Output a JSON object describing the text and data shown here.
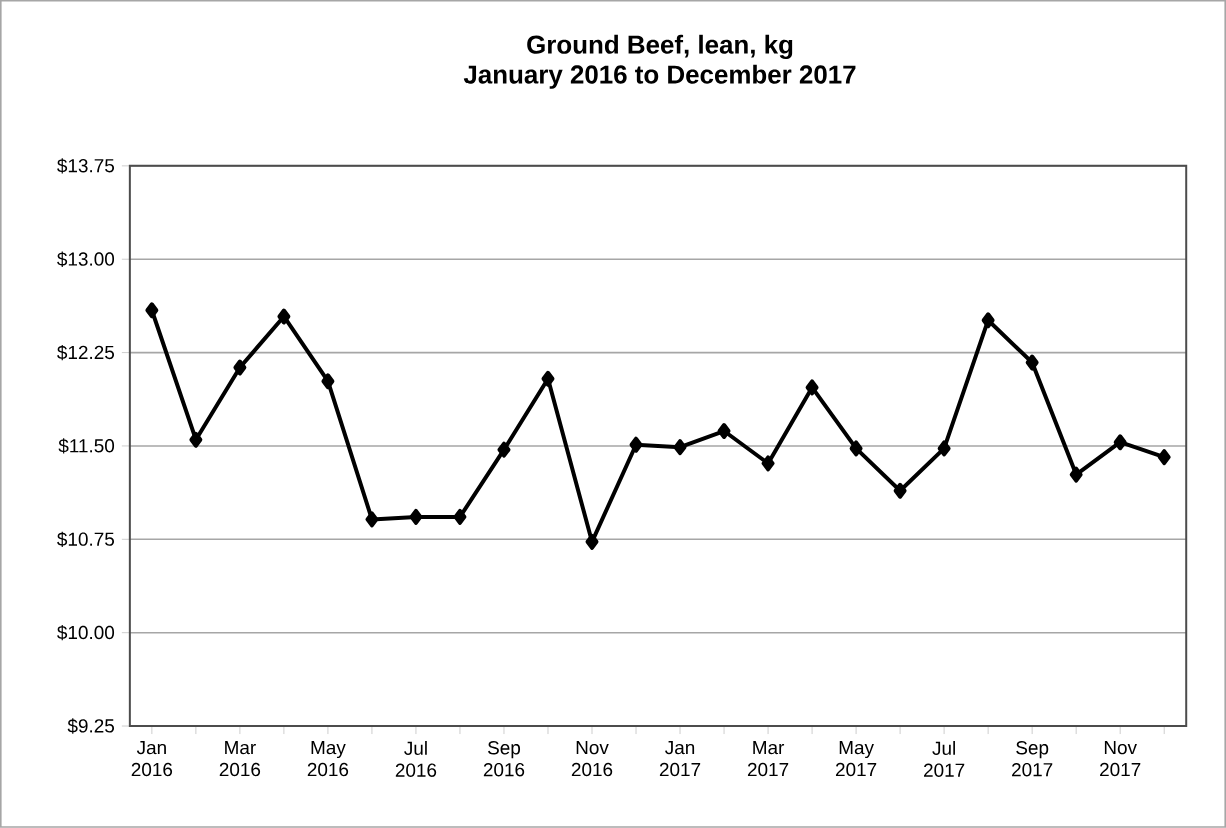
{
  "chart_data": {
    "type": "line",
    "title": "Ground Beef, lean, kg",
    "subtitle": "January 2016 to December 2017",
    "categories": [
      "Jan 2016",
      null,
      "Mar 2016",
      null,
      "May 2016",
      null,
      "Jul 2016",
      null,
      "Sep 2016",
      null,
      "Nov 2016",
      null,
      "Jan 2017",
      null,
      "Mar 2017",
      null,
      "May 2017",
      null,
      "Jul 2017",
      null,
      "Sep 2017",
      null,
      "Nov 2017",
      null
    ],
    "series": [
      {
        "color": "#000000",
        "values": [
          12.59,
          11.55,
          12.13,
          12.54,
          12.02,
          10.91,
          10.93,
          10.93,
          11.47,
          12.04,
          10.73,
          11.51,
          11.49,
          11.62,
          11.36,
          11.97,
          11.48,
          11.14,
          11.48,
          12.51,
          12.17,
          11.27,
          11.53,
          11.41
        ]
      }
    ],
    "ylim": [
      9.25,
      13.75
    ],
    "yticks": [
      {
        "value": 9.25,
        "label": "$9.25"
      },
      {
        "value": 10.0,
        "label": "$10.00"
      },
      {
        "value": 10.75,
        "label": "$10.75"
      },
      {
        "value": 11.5,
        "label": "$11.50"
      },
      {
        "value": 12.25,
        "label": "$12.25"
      },
      {
        "value": 13.0,
        "label": "$13.00"
      },
      {
        "value": 13.75,
        "label": "$13.75"
      }
    ],
    "grid": "y",
    "marker": "diamond",
    "line_style": "solid"
  }
}
